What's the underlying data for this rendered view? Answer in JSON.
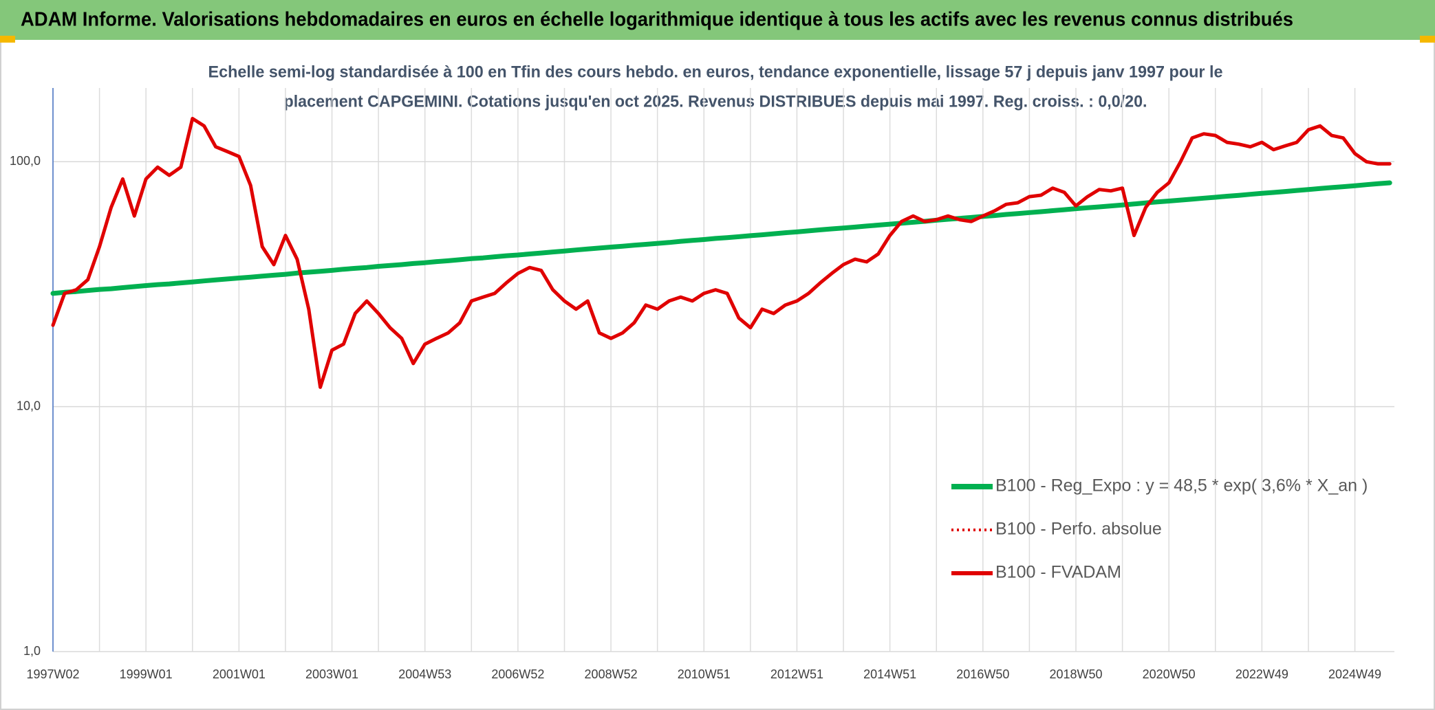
{
  "chart_data": {
    "type": "line",
    "title": "ADAM Informe. Valorisations hebdomadaires en euros en échelle logarithmique identique à tous les actifs avec les revenus connus distribués",
    "subtitle": [
      "Echelle semi-log standardisée à 100 en Tfin des cours hebdo. en euros, tendance exponentielle, lissage 57 j depuis janv 1997 pour le",
      "placement CAPGEMINI. Cotations jusqu'en oct 2025. Revenus DISTRIBUES depuis mai 1997. Reg. croiss. : 0,0/20."
    ],
    "log_scale": true,
    "grid": true,
    "legend": "lower right",
    "ylim": [
      1,
      200
    ],
    "yticks": [
      {
        "value": 1,
        "label": "1,0"
      },
      {
        "value": 10,
        "label": "10,0"
      },
      {
        "value": 100,
        "label": "100,0"
      }
    ],
    "categories": [
      "1997W02",
      null,
      null,
      null,
      null,
      null,
      null,
      null,
      "1999W01",
      null,
      null,
      null,
      null,
      null,
      null,
      null,
      "2001W01",
      null,
      null,
      null,
      null,
      null,
      null,
      null,
      "2003W01",
      null,
      null,
      null,
      null,
      null,
      null,
      null,
      "2004W53",
      null,
      null,
      null,
      null,
      null,
      null,
      null,
      "2006W52",
      null,
      null,
      null,
      null,
      null,
      null,
      null,
      "2008W52",
      null,
      null,
      null,
      null,
      null,
      null,
      null,
      "2010W51",
      null,
      null,
      null,
      null,
      null,
      null,
      null,
      "2012W51",
      null,
      null,
      null,
      null,
      null,
      null,
      null,
      "2014W51",
      null,
      null,
      null,
      null,
      null,
      null,
      null,
      "2016W50",
      null,
      null,
      null,
      null,
      null,
      null,
      null,
      "2018W50",
      null,
      null,
      null,
      null,
      null,
      null,
      null,
      "2020W50",
      null,
      null,
      null,
      null,
      null,
      null,
      null,
      "2022W49",
      null,
      null,
      null,
      null,
      null,
      null,
      null,
      "2024W49",
      null,
      null,
      null
    ],
    "series": [
      {
        "name": "B100 - Reg_Expo : y = 48,5 * exp( 3,6% *  X_an )",
        "color": "#00b050",
        "dash": "solid",
        "width": 7,
        "values": [
          29.0,
          29.3,
          29.5,
          29.8,
          30.1,
          30.3,
          30.6,
          30.9,
          31.2,
          31.5,
          31.7,
          32.0,
          32.3,
          32.6,
          32.9,
          33.2,
          33.5,
          33.8,
          34.1,
          34.4,
          34.7,
          35.1,
          35.4,
          35.7,
          36.0,
          36.4,
          36.7,
          37.0,
          37.4,
          37.7,
          38.0,
          38.4,
          38.7,
          39.1,
          39.4,
          39.8,
          40.2,
          40.5,
          40.9,
          41.3,
          41.6,
          42.0,
          42.4,
          42.8,
          43.2,
          43.6,
          44.0,
          44.4,
          44.8,
          45.2,
          45.6,
          46.0,
          46.4,
          46.8,
          47.3,
          47.7,
          48.1,
          48.6,
          49.0,
          49.4,
          49.9,
          50.3,
          50.8,
          51.3,
          51.7,
          52.2,
          52.7,
          53.2,
          53.6,
          54.1,
          54.6,
          55.1,
          55.6,
          56.1,
          56.6,
          57.1,
          57.7,
          58.2,
          58.7,
          59.2,
          59.8,
          60.3,
          60.9,
          61.4,
          62.0,
          62.5,
          63.1,
          63.7,
          64.3,
          64.9,
          65.4,
          66.0,
          66.6,
          67.2,
          67.9,
          68.5,
          69.1,
          69.7,
          70.3,
          71.0,
          71.6,
          72.3,
          72.9,
          73.6,
          74.3,
          74.9,
          75.6,
          76.3,
          77.0,
          77.7,
          78.4,
          79.1,
          79.8,
          80.6,
          81.3,
          82.0
        ]
      },
      {
        "name": "B100 - Perfo. absolue",
        "color": "#e00000",
        "dash": "dotted",
        "width": 4,
        "values": [
          21.5,
          29,
          30,
          33,
          45,
          65,
          85,
          60,
          85,
          95,
          88,
          95,
          150,
          140,
          115,
          110,
          105,
          80,
          45,
          38,
          50,
          40,
          25,
          12,
          17,
          18,
          24,
          27,
          24,
          21,
          19,
          15,
          18,
          19,
          20,
          22,
          27,
          28,
          29,
          32,
          35,
          37,
          36,
          30,
          27,
          25,
          27,
          20,
          19,
          20,
          22,
          26,
          25,
          27,
          28,
          27,
          29,
          30,
          29,
          23,
          21,
          25,
          24,
          26,
          27,
          29,
          32,
          35,
          38,
          40,
          39,
          42,
          50,
          57,
          60,
          57,
          58,
          60,
          58,
          57,
          60,
          63,
          67,
          68,
          72,
          73,
          78,
          75,
          66,
          72,
          77,
          76,
          78,
          50,
          65,
          75,
          82,
          100,
          125,
          130,
          128,
          120,
          118,
          115,
          120,
          112,
          116,
          120,
          135,
          140,
          128,
          125,
          108,
          100,
          98,
          98
        ]
      },
      {
        "name": "B100 - FVADAM",
        "color": "#e00000",
        "dash": "solid",
        "width": 5,
        "values": [
          21.5,
          29,
          30,
          33,
          45,
          65,
          85,
          60,
          85,
          95,
          88,
          95,
          150,
          140,
          115,
          110,
          105,
          80,
          45,
          38,
          50,
          40,
          25,
          12,
          17,
          18,
          24,
          27,
          24,
          21,
          19,
          15,
          18,
          19,
          20,
          22,
          27,
          28,
          29,
          32,
          35,
          37,
          36,
          30,
          27,
          25,
          27,
          20,
          19,
          20,
          22,
          26,
          25,
          27,
          28,
          27,
          29,
          30,
          29,
          23,
          21,
          25,
          24,
          26,
          27,
          29,
          32,
          35,
          38,
          40,
          39,
          42,
          50,
          57,
          60,
          57,
          58,
          60,
          58,
          57,
          60,
          63,
          67,
          68,
          72,
          73,
          78,
          75,
          66,
          72,
          77,
          76,
          78,
          50,
          65,
          75,
          82,
          100,
          125,
          130,
          128,
          120,
          118,
          115,
          120,
          112,
          116,
          120,
          135,
          140,
          128,
          125,
          108,
          100,
          98,
          98
        ]
      }
    ]
  }
}
